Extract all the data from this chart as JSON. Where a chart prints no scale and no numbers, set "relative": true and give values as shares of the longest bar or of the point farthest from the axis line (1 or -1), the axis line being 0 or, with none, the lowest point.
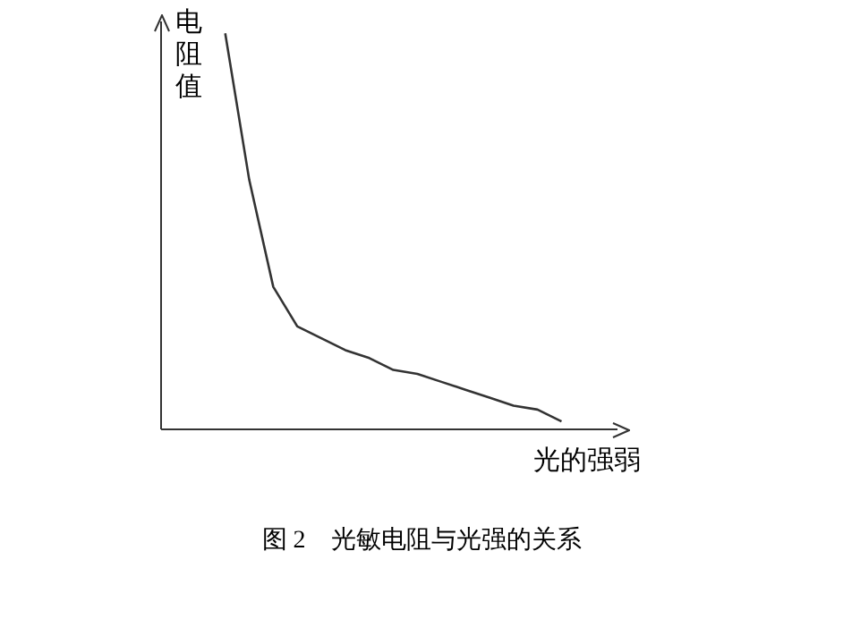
{
  "chart_data": {
    "type": "line",
    "relative": true,
    "ylabel": "电阻值",
    "xlabel": "光的强弱",
    "annotations": [
      "图 2    光敏电阻与光强的关系"
    ],
    "categories": [
      null,
      null,
      null,
      null,
      null,
      null,
      null,
      null,
      null,
      null,
      null,
      null,
      null,
      null,
      null
    ],
    "marker": "none",
    "grid": false,
    "legend": false,
    "series": [
      {
        "color": "#333333",
        "values": [
          1.0,
          0.63,
          0.36,
          0.26,
          0.23,
          0.2,
          0.18,
          0.15,
          0.14,
          0.12,
          0.1,
          0.08,
          0.06,
          0.05,
          0.02
        ]
      }
    ]
  }
}
